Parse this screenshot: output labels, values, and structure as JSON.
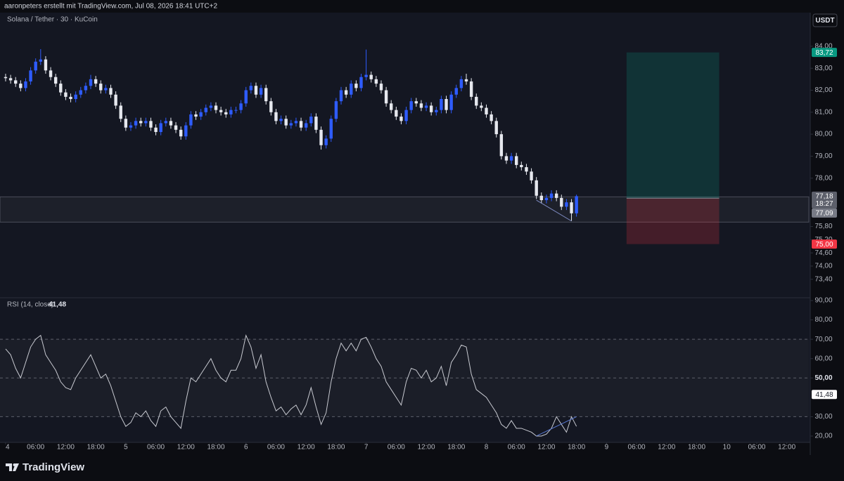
{
  "header": {
    "caption": "aaronpeters erstellt mit TradingView.com, Jul 08, 2026 18:41 UTC+2"
  },
  "footer": {
    "brand": "TradingView"
  },
  "chart_data": [
    {
      "type": "candlestick",
      "title": "Solana / Tether · 30 · KuCoin",
      "currency": "USDT",
      "colors": {
        "up": "#2e5cff",
        "down": "#e6e8ee"
      },
      "x": [
        0,
        1,
        2,
        3,
        4,
        5,
        6,
        7,
        8,
        9,
        10,
        11,
        12,
        13,
        14,
        15,
        16,
        17,
        18,
        19,
        20,
        21,
        22,
        23,
        24,
        25,
        26,
        27,
        28,
        29,
        30,
        31,
        32,
        33,
        34,
        35,
        36,
        37,
        38,
        39,
        40,
        41,
        42,
        43,
        44,
        45,
        46,
        47,
        48,
        49,
        50,
        51,
        52,
        53,
        54,
        55,
        56,
        57,
        58,
        59,
        60,
        61,
        62,
        63,
        64,
        65,
        66,
        67,
        68,
        69,
        70,
        71,
        72,
        73,
        74,
        75,
        76,
        77,
        78,
        79,
        80,
        81,
        82,
        83,
        84,
        85,
        86,
        87,
        88,
        89,
        90,
        91,
        92,
        93,
        94,
        95,
        96,
        97,
        98,
        99,
        100,
        101,
        102,
        103,
        104,
        105,
        106,
        107,
        108,
        109,
        110,
        111,
        112,
        113,
        114
      ],
      "open": [
        82.6,
        82.55,
        82.45,
        82.3,
        82.1,
        82.4,
        82.9,
        83.3,
        83.4,
        82.9,
        82.6,
        82.3,
        81.9,
        81.7,
        81.6,
        81.8,
        82.0,
        82.2,
        82.5,
        82.3,
        82.0,
        82.1,
        81.8,
        81.3,
        80.7,
        80.3,
        80.4,
        80.6,
        80.5,
        80.6,
        80.3,
        80.1,
        80.5,
        80.6,
        80.4,
        80.2,
        79.9,
        80.4,
        80.9,
        80.8,
        81.0,
        81.2,
        81.3,
        81.1,
        81.0,
        80.9,
        81.1,
        81.1,
        81.4,
        82.0,
        82.2,
        81.8,
        82.1,
        81.5,
        81.0,
        80.6,
        80.7,
        80.4,
        80.5,
        80.6,
        80.3,
        80.5,
        80.8,
        80.2,
        79.5,
        79.8,
        80.7,
        81.5,
        82.0,
        81.8,
        82.3,
        82.1,
        82.6,
        82.7,
        82.5,
        82.3,
        82.0,
        81.4,
        81.1,
        80.8,
        80.6,
        81.1,
        81.5,
        81.4,
        81.2,
        81.3,
        81.0,
        81.1,
        81.6,
        81.1,
        81.8,
        82.1,
        82.5,
        82.4,
        81.7,
        81.3,
        81.2,
        80.9,
        80.6,
        80.0,
        79.0,
        78.8,
        79.0,
        78.6,
        78.5,
        78.3,
        77.9,
        77.2,
        77.0,
        77.1,
        77.3,
        77.1,
        76.7,
        76.9,
        76.4
      ],
      "high": [
        82.75,
        82.7,
        82.6,
        82.45,
        82.55,
        83.05,
        83.45,
        83.87,
        83.55,
        83.05,
        82.75,
        82.45,
        82.05,
        81.85,
        81.95,
        82.15,
        82.35,
        82.7,
        82.65,
        82.45,
        82.25,
        82.25,
        81.95,
        81.45,
        80.85,
        80.55,
        80.75,
        80.75,
        80.75,
        80.75,
        80.45,
        80.65,
        80.75,
        80.75,
        80.55,
        80.35,
        80.55,
        81.05,
        81.05,
        81.15,
        81.35,
        81.45,
        81.45,
        81.25,
        81.15,
        81.25,
        81.25,
        81.55,
        82.15,
        82.35,
        82.35,
        82.25,
        82.25,
        81.65,
        81.15,
        80.85,
        80.85,
        80.65,
        80.75,
        80.75,
        80.65,
        80.95,
        80.95,
        80.35,
        79.95,
        80.85,
        81.65,
        82.15,
        82.15,
        82.45,
        82.45,
        82.75,
        83.85,
        82.85,
        82.65,
        82.45,
        82.15,
        81.55,
        81.25,
        80.95,
        81.25,
        81.65,
        81.65,
        81.55,
        81.45,
        81.45,
        81.25,
        81.75,
        81.75,
        81.95,
        82.25,
        82.65,
        82.75,
        82.55,
        81.85,
        81.45,
        81.35,
        81.05,
        80.75,
        80.15,
        79.15,
        79.15,
        79.15,
        78.75,
        78.65,
        78.45,
        78.05,
        77.35,
        77.25,
        77.45,
        77.45,
        77.25,
        77.05,
        77.05,
        77.25
      ],
      "low": [
        82.4,
        82.3,
        82.15,
        81.95,
        81.95,
        82.25,
        82.75,
        83.15,
        82.75,
        82.45,
        82.15,
        81.75,
        81.55,
        81.45,
        81.45,
        81.65,
        81.85,
        82.05,
        82.15,
        81.85,
        81.85,
        81.65,
        81.15,
        80.55,
        80.15,
        80.15,
        80.25,
        80.35,
        80.35,
        80.15,
        79.95,
        79.95,
        80.35,
        80.25,
        80.05,
        79.75,
        79.75,
        80.25,
        80.65,
        80.65,
        80.85,
        81.05,
        80.95,
        80.85,
        80.75,
        80.75,
        80.95,
        80.95,
        81.25,
        81.85,
        81.65,
        81.65,
        81.35,
        80.85,
        80.45,
        80.45,
        80.25,
        80.25,
        80.35,
        80.15,
        80.15,
        80.35,
        80.05,
        79.3,
        79.35,
        79.65,
        80.55,
        81.35,
        81.65,
        81.65,
        81.95,
        81.95,
        82.45,
        82.35,
        82.15,
        81.85,
        81.25,
        80.95,
        80.65,
        80.45,
        80.45,
        80.95,
        81.25,
        81.05,
        81.05,
        80.85,
        80.85,
        80.95,
        80.95,
        80.95,
        81.65,
        81.95,
        82.25,
        81.55,
        81.15,
        81.05,
        80.75,
        80.45,
        79.85,
        78.85,
        78.65,
        78.65,
        78.45,
        78.35,
        78.15,
        77.75,
        77.05,
        76.85,
        76.85,
        76.95,
        76.95,
        76.55,
        76.55,
        76.05,
        76.25
      ],
      "close": [
        82.55,
        82.45,
        82.3,
        82.1,
        82.4,
        82.9,
        83.3,
        83.4,
        82.9,
        82.6,
        82.3,
        81.9,
        81.7,
        81.6,
        81.8,
        82.0,
        82.2,
        82.5,
        82.3,
        82.0,
        82.1,
        81.8,
        81.3,
        80.7,
        80.3,
        80.4,
        80.6,
        80.5,
        80.6,
        80.3,
        80.1,
        80.5,
        80.6,
        80.4,
        80.2,
        79.9,
        80.4,
        80.9,
        80.8,
        81.0,
        81.2,
        81.3,
        81.1,
        81.0,
        80.9,
        81.1,
        81.1,
        81.4,
        82.0,
        82.2,
        81.8,
        82.1,
        81.5,
        81.0,
        80.6,
        80.7,
        80.4,
        80.5,
        80.6,
        80.3,
        80.5,
        80.8,
        80.2,
        79.5,
        79.8,
        80.7,
        81.5,
        82.0,
        81.8,
        82.3,
        82.1,
        82.6,
        82.7,
        82.5,
        82.3,
        82.0,
        81.4,
        81.1,
        80.8,
        80.6,
        81.1,
        81.5,
        81.4,
        81.2,
        81.3,
        81.0,
        81.1,
        81.6,
        81.1,
        81.8,
        82.1,
        82.5,
        82.4,
        81.7,
        81.3,
        81.2,
        80.9,
        80.6,
        80.0,
        79.0,
        78.8,
        79.0,
        78.6,
        78.5,
        78.3,
        77.9,
        77.2,
        77.0,
        77.1,
        77.3,
        77.1,
        76.7,
        76.9,
        76.4,
        77.18
      ],
      "last_price_label": "77,18",
      "countdown": "18:27",
      "xlim": [
        -1.12,
        160.4
      ],
      "xticks": [
        {
          "value": 0,
          "label": "4"
        },
        {
          "value": 6,
          "label": "06:00"
        },
        {
          "value": 12,
          "label": "12:00"
        },
        {
          "value": 18,
          "label": "18:00"
        },
        {
          "value": 24,
          "label": "5"
        },
        {
          "value": 30,
          "label": "06:00"
        },
        {
          "value": 36,
          "label": "12:00"
        },
        {
          "value": 42,
          "label": "18:00"
        },
        {
          "value": 48,
          "label": "6"
        },
        {
          "value": 54,
          "label": "06:00"
        },
        {
          "value": 60,
          "label": "12:00"
        },
        {
          "value": 66,
          "label": "18:00"
        },
        {
          "value": 72,
          "label": "7"
        },
        {
          "value": 78,
          "label": "06:00"
        },
        {
          "value": 84,
          "label": "12:00"
        },
        {
          "value": 90,
          "label": "18:00"
        },
        {
          "value": 96,
          "label": "8"
        },
        {
          "value": 102,
          "label": "06:00"
        },
        {
          "value": 108,
          "label": "12:00"
        },
        {
          "value": 114,
          "label": "18:00"
        },
        {
          "value": 120,
          "label": "9"
        },
        {
          "value": 126,
          "label": "06:00"
        },
        {
          "value": 132,
          "label": "12:00"
        },
        {
          "value": 138,
          "label": "18:00"
        },
        {
          "value": 144,
          "label": "10"
        },
        {
          "value": 150,
          "label": "06:00"
        },
        {
          "value": 156,
          "label": "12:00"
        }
      ],
      "ylim": [
        72.56,
        85.53
      ],
      "yticks": [
        {
          "value": 84,
          "label": "84,00"
        },
        {
          "value": 83,
          "label": "83,00"
        },
        {
          "value": 82,
          "label": "82,00"
        },
        {
          "value": 81,
          "label": "81,00"
        },
        {
          "value": 80,
          "label": "80,00"
        },
        {
          "value": 79,
          "label": "79,00"
        },
        {
          "value": 78,
          "label": "78,00"
        },
        {
          "value": 75.8,
          "label": "75,80"
        },
        {
          "value": 75.2,
          "label": "75,20"
        },
        {
          "value": 74.6,
          "label": "74,60"
        },
        {
          "value": 74,
          "label": "74,00"
        },
        {
          "value": 73.4,
          "label": "73,40"
        }
      ],
      "zone": [
        76.0,
        77.15
      ],
      "trendline": {
        "x": [
          106,
          113
        ],
        "y": [
          77.0,
          76.05
        ],
        "color": "#7f8cc4"
      },
      "position": {
        "x": [
          124,
          142.5
        ],
        "entry": {
          "value": 77.09,
          "label": "77,09"
        },
        "target": {
          "value": 83.72,
          "label": "83,72"
        },
        "stop": {
          "value": 75.0,
          "label": "75,00"
        }
      }
    },
    {
      "type": "line",
      "title": "RSI (14, close)",
      "color": "#c8cad1",
      "values": [
        65,
        62,
        55,
        50,
        58,
        66,
        70,
        72,
        62,
        58,
        54,
        48,
        45,
        44,
        50,
        54,
        58,
        62,
        56,
        50,
        52,
        46,
        38,
        30,
        25,
        27,
        32,
        30,
        33,
        28,
        25,
        33,
        35,
        30,
        27,
        24,
        38,
        50,
        48,
        52,
        56,
        60,
        54,
        50,
        48,
        54,
        54,
        60,
        72,
        66,
        55,
        62,
        48,
        40,
        33,
        35,
        31,
        34,
        36,
        31,
        36,
        45,
        35,
        26,
        32,
        48,
        60,
        68,
        64,
        68,
        64,
        70,
        71,
        66,
        60,
        56,
        48,
        44,
        40,
        36,
        48,
        55,
        54,
        50,
        54,
        48,
        50,
        56,
        46,
        58,
        62,
        67,
        66,
        52,
        44,
        42,
        40,
        36,
        32,
        26,
        24,
        28,
        24,
        24,
        23,
        22,
        20,
        20,
        21,
        24,
        30,
        26,
        22,
        30,
        25,
        41.48
      ],
      "last_value_label": "41,48",
      "ylim": [
        16.73,
        91.45
      ],
      "yticks": [
        {
          "value": 90,
          "label": "90,00"
        },
        {
          "value": 80,
          "label": "80,00"
        },
        {
          "value": 70,
          "label": "70,00"
        },
        {
          "value": 60,
          "label": "60,00"
        },
        {
          "value": 50,
          "label": "50,00"
        },
        {
          "value": 30,
          "label": "30,00"
        },
        {
          "value": 20,
          "label": "20,00"
        }
      ],
      "bands": {
        "upper": 70,
        "middle": 50,
        "lower": 30
      },
      "divergence": {
        "x": [
          106,
          114
        ],
        "y": [
          20,
          30
        ],
        "color": "#5b7bd5"
      }
    }
  ]
}
